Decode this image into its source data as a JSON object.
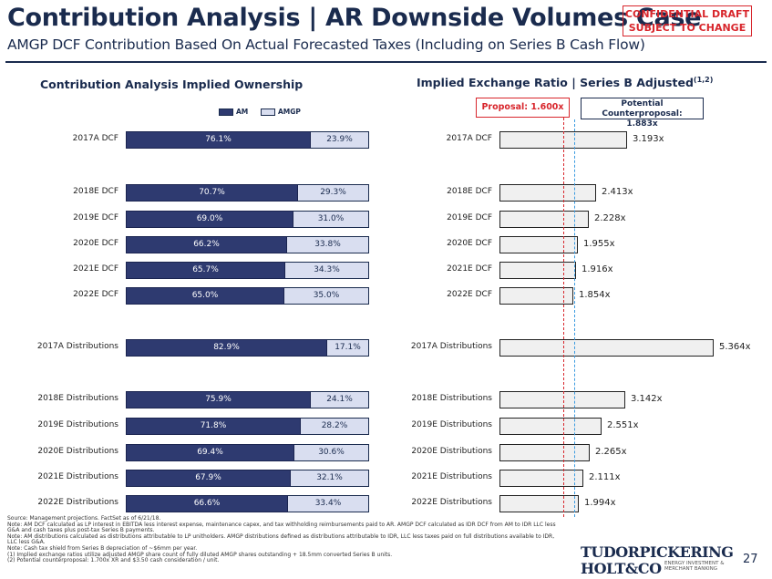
{
  "header": {
    "title": "Contribution Analysis | AR Downside Volumes Case",
    "subtitle": "AMGP DCF Contribution Based On Actual Forecasted Taxes (Including on Series B Cash Flow)",
    "confidential_line1": "CONFIDENTIAL DRAFT",
    "confidential_line2": "SUBJECT TO CHANGE"
  },
  "left_panel": {
    "title": "Contribution Analysis Implied Ownership",
    "legend": [
      "AM",
      "AMGP"
    ],
    "colors": {
      "am": "#2e3a70",
      "amgp": "#d9def0"
    }
  },
  "right_panel": {
    "title": "Implied Exchange Ratio | Series B Adjusted",
    "title_sup": "(1,2)",
    "proposal_label": "Proposal: 1.600x",
    "counter_line1": "Potential Counterproposal:",
    "counter_line2": "1.883x",
    "proposal_value": 1.6,
    "counter_value": 1.883
  },
  "chart_data": [
    {
      "type": "bar",
      "orientation": "horizontal-stacked",
      "title": "Contribution Analysis Implied Ownership",
      "categories": [
        "2017A DCF",
        "2018E DCF",
        "2019E DCF",
        "2020E DCF",
        "2021E DCF",
        "2022E DCF",
        "2017A Distributions",
        "2018E Distributions",
        "2019E Distributions",
        "2020E Distributions",
        "2021E Distributions",
        "2022E Distributions"
      ],
      "series": [
        {
          "name": "AM",
          "values": [
            76.1,
            70.7,
            69.0,
            66.2,
            65.7,
            65.0,
            82.9,
            75.9,
            71.8,
            69.4,
            67.9,
            66.6
          ],
          "labels": [
            "76.1%",
            "70.7%",
            "69.0%",
            "66.2%",
            "65.7%",
            "65.0%",
            "82.9%",
            "75.9%",
            "71.8%",
            "69.4%",
            "67.9%",
            "66.6%"
          ]
        },
        {
          "name": "AMGP",
          "values": [
            23.9,
            29.3,
            31.0,
            33.8,
            34.3,
            35.0,
            17.1,
            24.1,
            28.2,
            30.6,
            32.1,
            33.4
          ],
          "labels": [
            "23.9%",
            "29.3%",
            "31.0%",
            "33.8%",
            "34.3%",
            "35.0%",
            "17.1%",
            "24.1%",
            "28.2%",
            "30.6%",
            "32.1%",
            "33.4%"
          ]
        }
      ],
      "xlim": [
        0,
        100
      ]
    },
    {
      "type": "bar",
      "orientation": "horizontal",
      "title": "Implied Exchange Ratio | Series B Adjusted",
      "categories": [
        "2017A DCF",
        "2018E DCF",
        "2019E DCF",
        "2020E DCF",
        "2021E DCF",
        "2022E DCF",
        "2017A Distributions",
        "2018E Distributions",
        "2019E Distributions",
        "2020E Distributions",
        "2021E Distributions",
        "2022E Distributions"
      ],
      "values": [
        3.193,
        2.413,
        2.228,
        1.955,
        1.916,
        1.854,
        5.364,
        3.142,
        2.551,
        2.265,
        2.111,
        1.994
      ],
      "labels": [
        "3.193x",
        "2.413x",
        "2.228x",
        "1.955x",
        "1.916x",
        "1.854x",
        "5.364x",
        "3.142x",
        "2.551x",
        "2.265x",
        "2.111x",
        "1.994x"
      ],
      "reference_lines": [
        {
          "value": 1.6,
          "color": "#d8262c"
        },
        {
          "value": 1.883,
          "color": "#3b9be0"
        }
      ]
    }
  ],
  "notes": [
    "Source: Management projections. FactSet as of 6/21/18.",
    "Note: AM DCF calculated as LP interest in EBITDA less interest expense, maintenance capex, and tax withholding reimbursements paid to AR. AMGP DCF calculated as IDR DCF from AM to IDR LLC less",
    "G&A and cash taxes plus post-tax Series B payments.",
    "Note: AM distributions calculated as distributions attributable to LP unitholders. AMGP distributions defined as distributions attributable to IDR, LLC less taxes paid on full distributions available to IDR,",
    "LLC less G&A.",
    "Note: Cash tax shield from Series B depreciation of ~$6mm per year.",
    "(1)      Implied exchange ratios utilize adjusted AMGP share count of fully diluted AMGP shares outstanding + 18.5mm converted Series B units.",
    "(2)      Potential counterproposal: 1.700x XR and $3.50 cash consideration / unit."
  ],
  "footer": {
    "logo_line1": "TUDORPICKERING",
    "logo_line2": "HOLT&CO",
    "logo_tag1": "ENERGY INVESTMENT &",
    "logo_tag2": "MERCHANT BANKING",
    "page_number": "27"
  }
}
